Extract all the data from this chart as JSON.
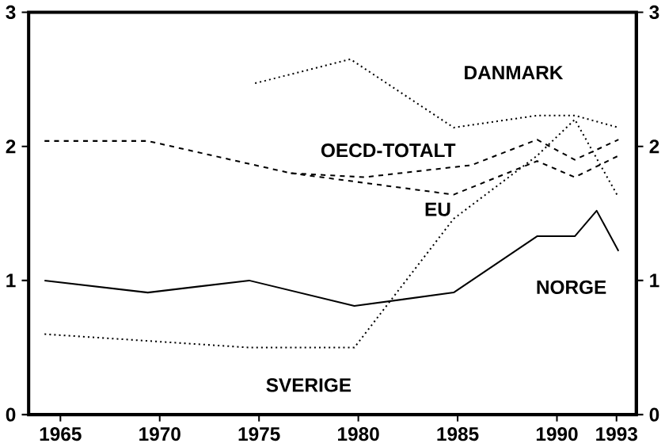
{
  "chart_data": {
    "type": "line",
    "xlim": [
      1963.4,
      1994
    ],
    "xticks": [
      1965,
      1970,
      1975,
      1980,
      1985,
      1990,
      1993
    ],
    "ylim": [
      0,
      3
    ],
    "yticks": [
      0,
      1,
      2,
      3
    ],
    "y2lim": [
      0,
      3
    ],
    "y2ticks": [
      0,
      1,
      2,
      3
    ],
    "grid": false,
    "marker": "none",
    "series": [
      {
        "name": "DANMARK",
        "color": "#000000",
        "line_style": "dotted",
        "x": [
          1974.8,
          1979.6,
          1984.8,
          1989.0,
          1990.9,
          1993.1
        ],
        "values": [
          2.47,
          2.65,
          2.14,
          2.23,
          2.23,
          2.14
        ]
      },
      {
        "name": "OECD-TOTALT",
        "color": "#000000",
        "line_style": "dashed",
        "x": [
          1964.2,
          1969.4,
          1976.6,
          1980.3,
          1985.7,
          1989.0,
          1990.9,
          1993.1
        ],
        "values": [
          2.04,
          2.04,
          1.8,
          1.77,
          1.86,
          2.05,
          1.9,
          2.05
        ]
      },
      {
        "name": "EU",
        "color": "#000000",
        "line_style": "dashed",
        "x": [
          1976.6,
          1984.8,
          1989.0,
          1990.9,
          1993.1
        ],
        "values": [
          1.8,
          1.64,
          1.89,
          1.77,
          1.93
        ]
      },
      {
        "name": "NORGE",
        "color": "#000000",
        "line_style": "solid",
        "x": [
          1964.2,
          1969.4,
          1974.5,
          1979.8,
          1984.8,
          1989.0,
          1990.9,
          1992.0,
          1993.1
        ],
        "values": [
          1.0,
          0.91,
          1.0,
          0.81,
          0.91,
          1.33,
          1.33,
          1.52,
          1.22
        ]
      },
      {
        "name": "SVERIGE",
        "color": "#000000",
        "line_style": "dotted",
        "x": [
          1964.2,
          1974.5,
          1979.8,
          1984.8,
          1989.0,
          1990.9,
          1993.1
        ],
        "values": [
          0.6,
          0.5,
          0.5,
          1.46,
          1.93,
          2.2,
          1.62
        ]
      }
    ]
  }
}
